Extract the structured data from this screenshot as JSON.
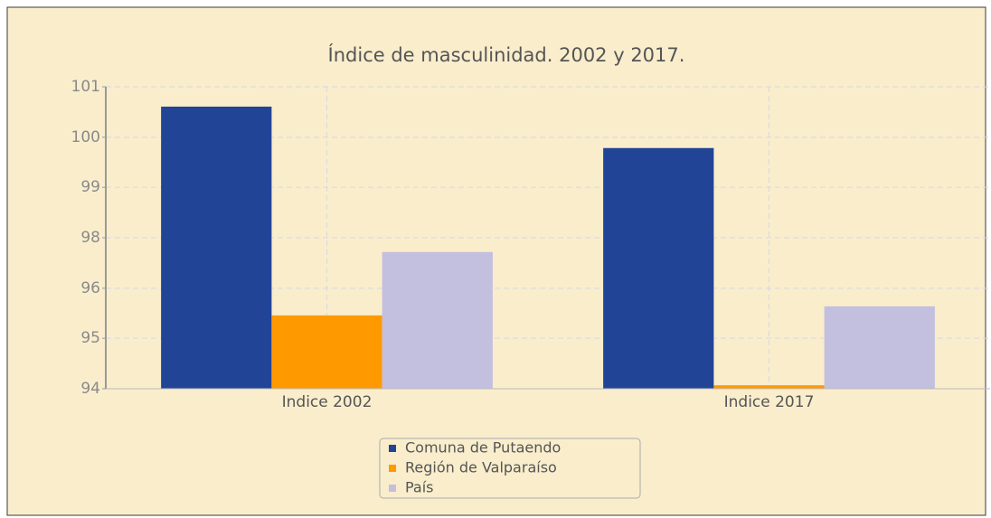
{
  "chart_data": {
    "type": "bar",
    "title": "Índice de masculinidad. 2002 y 2017.",
    "categories": [
      "Indice 2002",
      "Indice 2017"
    ],
    "series": [
      {
        "name": "Comuna de Putaendo",
        "color": "#214497",
        "values": [
          100.54,
          99.58
        ]
      },
      {
        "name": "Región de Valparaíso",
        "color": "#ff9900",
        "values": [
          95.7,
          94.08
        ]
      },
      {
        "name": "País",
        "color": "#c3bfdf",
        "values": [
          97.17,
          95.91
        ]
      }
    ],
    "ylim": [
      94,
      101
    ],
    "yticks": [
      94,
      {
        "value": 95.17,
        "label": "95"
      },
      {
        "value": 96.33,
        "label": "96"
      },
      {
        "value": 97.5,
        "label": "98"
      },
      {
        "value": 98.67,
        "label": "99"
      },
      {
        "value": 99.83,
        "label": "100"
      },
      101
    ],
    "grid": true
  }
}
